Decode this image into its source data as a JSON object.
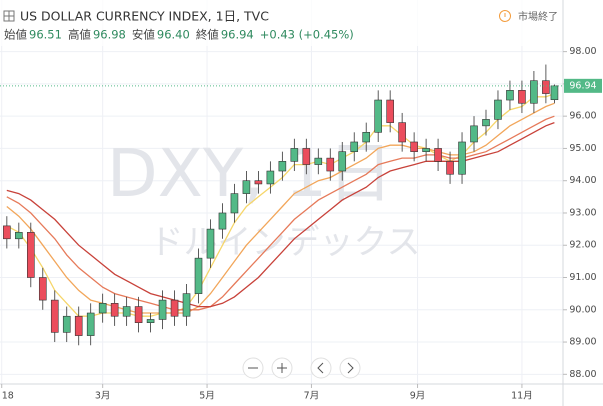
{
  "header": {
    "title": "US DOLLAR CURRENCY INDEX, 1日, TVC",
    "status": "市場終了",
    "ohlc": [
      {
        "label": "始値",
        "value": "96.51"
      },
      {
        "label": "高値",
        "value": "96.98"
      },
      {
        "label": "安値",
        "value": "96.40"
      },
      {
        "label": "終値",
        "value": "96.94"
      }
    ],
    "change": "+0.43 (+0.45%)"
  },
  "watermark": {
    "symbol": "DXY, 1日",
    "name": "ドルインデックス"
  },
  "chart_data": {
    "type": "candlestick",
    "x": [
      3,
      10,
      17,
      24,
      31,
      38,
      45,
      52,
      59,
      66,
      73,
      80,
      87,
      94,
      101,
      108,
      115,
      122,
      129,
      136,
      143,
      150,
      157,
      164,
      171,
      178,
      185,
      192,
      199,
      206,
      213,
      220,
      227,
      234,
      241,
      248,
      255,
      262,
      269,
      276,
      283,
      290,
      297,
      304,
      311,
      318,
      323
    ],
    "open": [
      92.6,
      92.2,
      92.4,
      91.0,
      90.3,
      89.3,
      89.8,
      89.2,
      89.9,
      90.2,
      89.8,
      90.1,
      89.6,
      89.7,
      90.3,
      89.8,
      90.5,
      91.6,
      92.5,
      93.0,
      93.6,
      94.0,
      93.9,
      94.3,
      94.6,
      95.0,
      94.5,
      94.7,
      94.3,
      94.9,
      95.2,
      95.5,
      96.5,
      95.8,
      95.2,
      94.9,
      95.0,
      94.6,
      94.2,
      95.2,
      95.7,
      95.9,
      96.5,
      96.8,
      96.4,
      97.1,
      96.51
    ],
    "high": [
      92.9,
      92.7,
      92.7,
      91.3,
      90.6,
      90.1,
      90.1,
      90.2,
      90.5,
      90.5,
      90.4,
      90.4,
      89.9,
      90.6,
      90.6,
      90.8,
      91.9,
      92.8,
      93.3,
      93.9,
      94.3,
      94.3,
      94.6,
      94.9,
      95.3,
      95.3,
      95.0,
      95.0,
      95.2,
      95.5,
      95.8,
      96.8,
      96.8,
      96.1,
      95.5,
      95.3,
      95.3,
      94.9,
      95.5,
      96.0,
      96.2,
      96.8,
      97.1,
      97.1,
      97.4,
      97.6,
      96.98
    ],
    "low": [
      91.9,
      91.9,
      90.7,
      90.0,
      89.0,
      89.0,
      88.9,
      88.9,
      89.6,
      89.5,
      89.5,
      89.3,
      89.3,
      89.4,
      89.5,
      89.5,
      90.2,
      91.3,
      92.2,
      92.7,
      93.3,
      93.6,
      93.6,
      94.0,
      94.3,
      94.2,
      94.2,
      94.0,
      94.0,
      94.6,
      94.9,
      95.2,
      95.5,
      94.9,
      94.6,
      94.6,
      94.3,
      93.9,
      93.9,
      94.9,
      95.4,
      95.6,
      96.2,
      96.1,
      96.1,
      96.4,
      96.4
    ],
    "close": [
      92.2,
      92.4,
      91.0,
      90.3,
      89.3,
      89.8,
      89.2,
      89.9,
      90.2,
      89.8,
      90.1,
      89.6,
      89.7,
      90.3,
      89.8,
      90.5,
      91.6,
      92.5,
      93.0,
      93.6,
      94.0,
      93.9,
      94.3,
      94.6,
      95.0,
      94.5,
      94.7,
      94.3,
      94.9,
      95.2,
      95.5,
      96.5,
      95.8,
      95.2,
      94.9,
      95.0,
      94.6,
      94.2,
      95.2,
      95.7,
      95.9,
      96.5,
      96.8,
      96.4,
      97.1,
      96.7,
      96.94
    ],
    "up_color": "#53b987",
    "down_color": "#eb4d5c",
    "ribbons": [
      {
        "color": "#f6d66a",
        "values": [
          92.6,
          92.4,
          91.9,
          91.3,
          90.6,
          90.2,
          89.8,
          89.8,
          89.9,
          89.9,
          89.9,
          89.8,
          89.8,
          89.9,
          89.9,
          90.1,
          90.6,
          91.3,
          92.0,
          92.7,
          93.2,
          93.5,
          93.8,
          94.1,
          94.5,
          94.5,
          94.6,
          94.5,
          94.7,
          94.9,
          95.2,
          95.7,
          95.7,
          95.4,
          95.1,
          95.0,
          94.8,
          94.6,
          94.8,
          95.2,
          95.5,
          95.9,
          96.2,
          96.3,
          96.6,
          96.6,
          96.7
        ]
      },
      {
        "color": "#f2a65a",
        "values": [
          93.2,
          92.9,
          92.5,
          92.0,
          91.5,
          91.0,
          90.6,
          90.3,
          90.2,
          90.1,
          90.0,
          89.9,
          89.9,
          89.9,
          89.9,
          89.9,
          90.1,
          90.5,
          91.0,
          91.5,
          92.0,
          92.4,
          92.8,
          93.2,
          93.6,
          93.8,
          94.0,
          94.1,
          94.3,
          94.5,
          94.7,
          95.0,
          95.1,
          95.1,
          95.0,
          95.0,
          94.9,
          94.8,
          94.8,
          94.9,
          95.1,
          95.4,
          95.7,
          95.9,
          96.1,
          96.3,
          96.4
        ]
      },
      {
        "color": "#e67a5a",
        "values": [
          93.5,
          93.3,
          93.0,
          92.6,
          92.2,
          91.7,
          91.3,
          91.0,
          90.7,
          90.5,
          90.4,
          90.3,
          90.2,
          90.1,
          90.0,
          90.0,
          90.0,
          90.1,
          90.4,
          90.8,
          91.2,
          91.6,
          92.0,
          92.4,
          92.8,
          93.1,
          93.4,
          93.6,
          93.8,
          94.0,
          94.2,
          94.5,
          94.6,
          94.7,
          94.7,
          94.8,
          94.8,
          94.7,
          94.7,
          94.8,
          94.9,
          95.1,
          95.3,
          95.5,
          95.7,
          95.9,
          96.0
        ]
      },
      {
        "color": "#c8423a",
        "values": [
          93.7,
          93.6,
          93.4,
          93.1,
          92.8,
          92.4,
          92.0,
          91.7,
          91.4,
          91.1,
          90.9,
          90.7,
          90.5,
          90.4,
          90.3,
          90.2,
          90.1,
          90.1,
          90.2,
          90.4,
          90.7,
          91.0,
          91.4,
          91.8,
          92.2,
          92.5,
          92.8,
          93.1,
          93.4,
          93.6,
          93.8,
          94.1,
          94.3,
          94.4,
          94.5,
          94.6,
          94.6,
          94.6,
          94.6,
          94.7,
          94.8,
          94.9,
          95.1,
          95.3,
          95.5,
          95.7,
          95.8
        ]
      }
    ],
    "xlim": [
      -1,
      328
    ],
    "xticks": [
      {
        "value": 0,
        "label": "18"
      },
      {
        "value": 59,
        "label": "3月"
      },
      {
        "value": 120,
        "label": "5月"
      },
      {
        "value": 181,
        "label": "7月"
      },
      {
        "value": 243,
        "label": "9月"
      },
      {
        "value": 304,
        "label": "11月"
      }
    ],
    "ylim": [
      87.7,
      99.6
    ],
    "yticks": [
      {
        "value": 88,
        "label": "88.00"
      },
      {
        "value": 89,
        "label": "89.00"
      },
      {
        "value": 90,
        "label": "90.00"
      },
      {
        "value": 91,
        "label": "91.00"
      },
      {
        "value": 92,
        "label": "92.00"
      },
      {
        "value": 93,
        "label": "93.00"
      },
      {
        "value": 94,
        "label": "94.00"
      },
      {
        "value": 95,
        "label": "95.00"
      },
      {
        "value": 96,
        "label": "96.00"
      },
      {
        "value": 97,
        "label": "97.00"
      },
      {
        "value": 98,
        "label": "98.00"
      }
    ],
    "last_price": {
      "value": 96.94,
      "label": "96.94"
    },
    "grid": true
  }
}
